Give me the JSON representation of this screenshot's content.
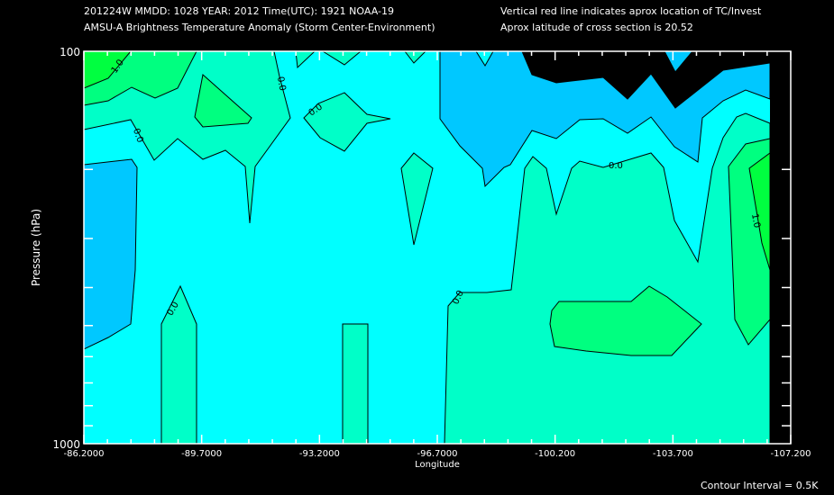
{
  "header": {
    "line1_left": "201224W  MMDD: 1028 YEAR: 2012 Time(UTC): 1921 NOAA-19",
    "line2_left": "AMSU-A Brightness Temperature Anomaly (Storm Center-Environment)",
    "line1_right": "Vertical red line indicates aprox location of TC/Invest",
    "line2_right": "Aprox latitude of cross section is 20.52"
  },
  "footer": {
    "contour_interval": "Contour Interval = 0.5K"
  },
  "chart_data": {
    "type": "heatmap",
    "title": "AMSU-A Brightness Temperature Anomaly (Storm Center-Environment)",
    "xlabel": "Longitude",
    "ylabel": "Pressure (hPa)",
    "x_ticks": [
      "-86.2000",
      "-89.7000",
      "-93.2000",
      "-96.7000",
      "-100.200",
      "-103.700",
      "-107.200"
    ],
    "xlim": [
      -86.2,
      -107.2
    ],
    "y_ticks": [
      "100",
      "1000"
    ],
    "ylim": [
      100,
      1000
    ],
    "y_scale": "log",
    "contour_interval_K": 0.5,
    "contour_labels": [
      "1.0",
      "0.0",
      "0.0",
      "0.0",
      "0.0",
      "0.0",
      "0.0",
      "1.0"
    ],
    "colors": {
      "level_pos1": "#00ff40",
      "level_pos05": "#00ff80",
      "level_0": "#00ffc8",
      "level_neg05": "#00ffff",
      "level_neg1": "#00c8ff",
      "missing": "#000000"
    }
  }
}
